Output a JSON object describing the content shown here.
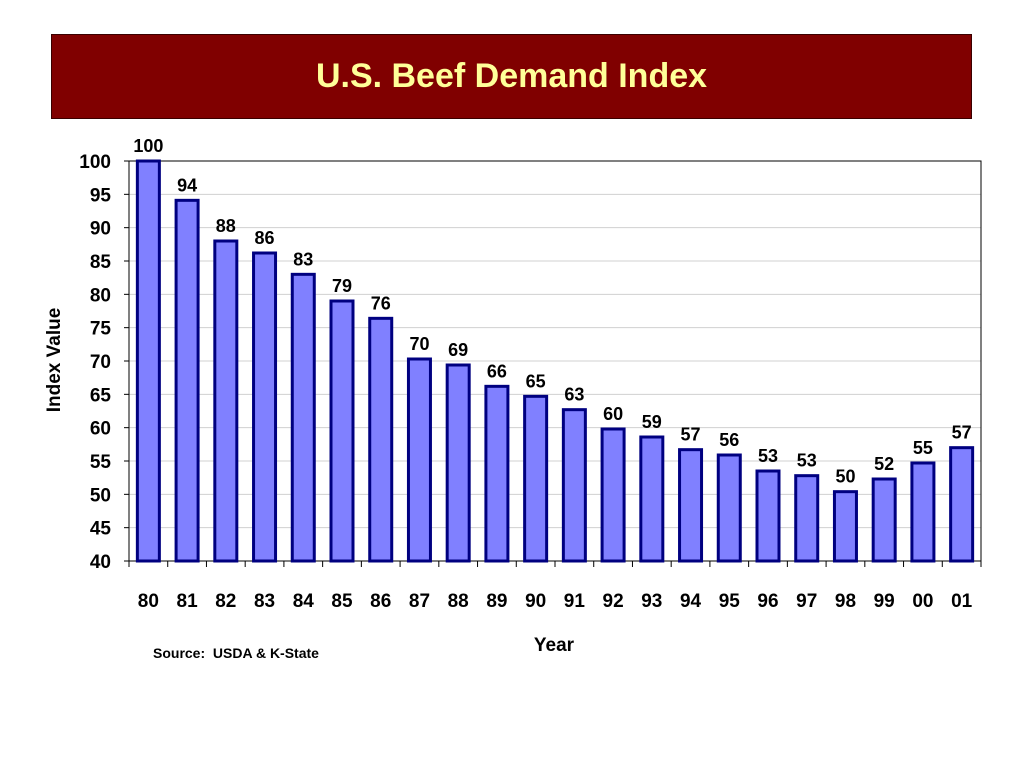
{
  "title": "U.S. Beef Demand Index",
  "source": "Source:  USDA & K-State",
  "colors": {
    "banner": "#800000",
    "title_text": "#ffff99",
    "bar_fill": "#8080ff",
    "bar_stroke": "#000080"
  },
  "chart_data": {
    "type": "bar",
    "title": "U.S. Beef Demand Index",
    "xlabel": "Year",
    "ylabel": "Index Value",
    "ylim": [
      40,
      100
    ],
    "yticks": [
      40,
      45,
      50,
      55,
      60,
      65,
      70,
      75,
      80,
      85,
      90,
      95,
      100
    ],
    "grid": true,
    "categories": [
      "80",
      "81",
      "82",
      "83",
      "84",
      "85",
      "86",
      "87",
      "88",
      "89",
      "90",
      "91",
      "92",
      "93",
      "94",
      "95",
      "96",
      "97",
      "98",
      "99",
      "00",
      "01"
    ],
    "values": [
      100,
      94,
      88,
      86,
      83,
      79,
      76,
      70,
      69,
      66,
      65,
      63,
      60,
      59,
      57,
      56,
      53,
      53,
      50,
      52,
      55,
      57
    ],
    "value_labels": [
      "100",
      "94",
      "88",
      "86",
      "83",
      "79",
      "76",
      "70",
      "69",
      "66",
      "65",
      "63",
      "60",
      "59",
      "57",
      "56",
      "53",
      "53",
      "50",
      "52",
      "55",
      "57"
    ],
    "plot_values": [
      100,
      94.1,
      88,
      86.2,
      83,
      79,
      76.4,
      70.3,
      69.4,
      66.2,
      64.7,
      62.7,
      59.8,
      58.6,
      56.7,
      55.9,
      53.5,
      52.8,
      50.4,
      52.3,
      54.7,
      57
    ]
  }
}
